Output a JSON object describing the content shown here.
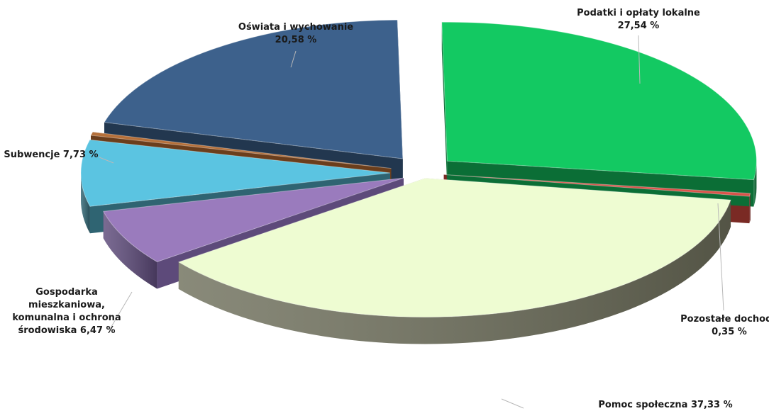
{
  "chart_data": {
    "type": "pie",
    "title": "",
    "slices": [
      {
        "name": "Podatki i opłaty lokalne",
        "value": 27.54,
        "value_label": "27,54 %",
        "color": "#13c962",
        "side": "#0b6e36"
      },
      {
        "name": "Pozostałe dochody",
        "value": 0.35,
        "value_label": "0,35 %",
        "color": "#d9534a",
        "side": "#7a2a24"
      },
      {
        "name": "Pomoc społeczna",
        "value": 37.33,
        "value_label": "37,33 %",
        "color": "#eefcd2",
        "side": "#6f705c"
      },
      {
        "name": "Gospodarka mieszkaniowa, komunalna i ochrona środowiska",
        "value": 6.47,
        "value_label": "6,47 %",
        "color": "#9a7bbd",
        "side": "#5d4a7a"
      },
      {
        "name": "Subwencje",
        "value": 7.73,
        "value_label": "7,73 %",
        "color": "#5bc4e1",
        "side": "#2f6472"
      },
      {
        "name": "",
        "value": 0.4,
        "value_label": "",
        "color": "#b5703a",
        "side": "#6b3e1c"
      },
      {
        "name": "Oświata i wychowanie",
        "value": 20.58,
        "value_label": "20,58 %",
        "color": "#3d618c",
        "side": "#22374f"
      }
    ],
    "labels": [
      {
        "lines": [
          "Podatki i opłaty lokalne",
          "27,54 %"
        ]
      },
      {
        "lines": [
          "Pozostałe dochody",
          "0,35 %"
        ]
      },
      {
        "lines": [
          "Pomoc społeczna 37,33 %"
        ]
      },
      {
        "lines": [
          "Gospodarka",
          "mieszkaniowa,",
          "komunalna i ochrona",
          "środowiska 6,47 %"
        ]
      },
      {
        "lines": [
          "Subwencje 7,73 %"
        ]
      },
      {
        "lines": []
      },
      {
        "lines": [
          "Oświata i wychowanie",
          "20,58 %"
        ]
      }
    ],
    "legend": "none"
  }
}
